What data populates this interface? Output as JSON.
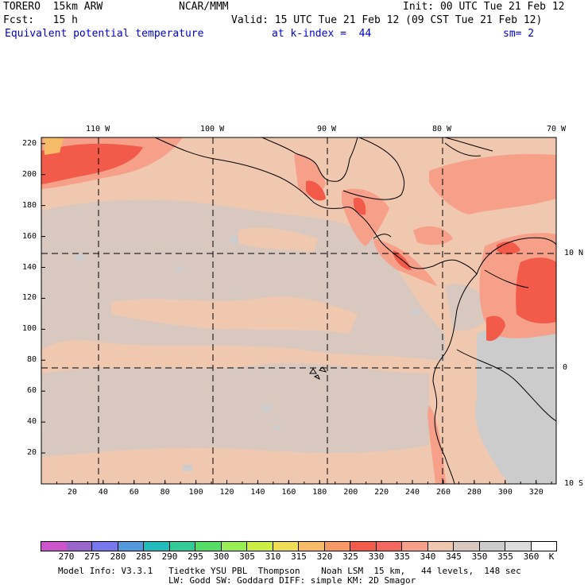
{
  "header": {
    "model": "TORERO  15km ARW",
    "org": "NCAR/MMM",
    "init": "Init: 00 UTC Tue 21 Feb 12",
    "fcst": "Fcst:   15 h",
    "valid": "Valid: 15 UTC Tue 21 Feb 12 (09 CST Tue 21 Feb 12)",
    "field": "Equivalent potential temperature",
    "level": "at k-index =  44",
    "smooth": "sm= 2"
  },
  "map": {
    "lon_labels": [
      "110 W",
      "100 W",
      "90 W",
      "80 W",
      "70 W"
    ],
    "lat_labels": [
      "10 N",
      "0",
      "10 S"
    ],
    "x_ticks": [
      "20",
      "40",
      "60",
      "80",
      "100",
      "120",
      "140",
      "160",
      "180",
      "200",
      "220",
      "240",
      "260",
      "280",
      "300",
      "320"
    ],
    "y_ticks": [
      "20",
      "40",
      "60",
      "80",
      "100",
      "120",
      "140",
      "160",
      "180",
      "200",
      "220"
    ]
  },
  "colorbar": {
    "levels": [
      "270",
      "275",
      "280",
      "285",
      "290",
      "295",
      "300",
      "305",
      "310",
      "315",
      "320",
      "325",
      "330",
      "335",
      "340",
      "345",
      "350",
      "355",
      "360"
    ],
    "unit": "K",
    "colors": [
      "#cc55cc",
      "#9966cc",
      "#7777ee",
      "#5599dd",
      "#22bbbb",
      "#33cc99",
      "#55dd66",
      "#99ee55",
      "#ccee44",
      "#eedd55",
      "#f5bb66",
      "#f59966",
      "#f25a4a",
      "#f26860",
      "#f6a08a",
      "#f0c8b0",
      "#d8c8c0",
      "#cccccc",
      "#dcdcdc",
      "#ffffff"
    ]
  },
  "footer": {
    "line1": "Model Info: V3.3.1   Tiedtke YSU PBL  Thompson    Noah LSM  15 km,   44 levels,  148 sec",
    "line2": "LW: Godd SW: Goddard DIFF: simple KM: 2D Smagor"
  }
}
